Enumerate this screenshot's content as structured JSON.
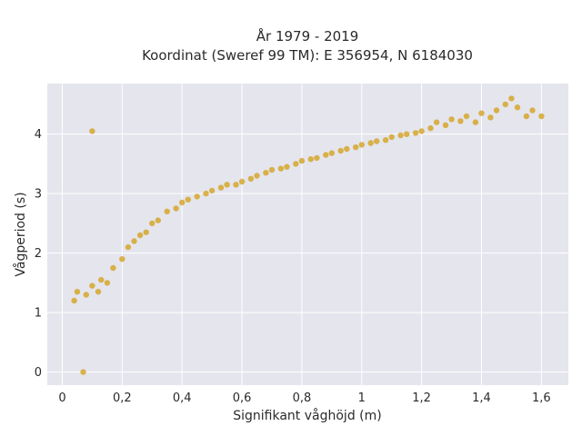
{
  "chart_data": {
    "type": "scatter",
    "title": [
      "År 1979 - 2019",
      "Koordinat (Sweref 99 TM): E 356954, N 6184030"
    ],
    "xlabel": "Signifikant våghöjd (m)",
    "ylabel": "Vågperiod (s)",
    "xlim": [
      -0.05,
      1.69
    ],
    "ylim": [
      -0.22,
      4.85
    ],
    "xticks": [
      0,
      0.2,
      0.4,
      0.6,
      0.8,
      1,
      1.2,
      1.4,
      1.6
    ],
    "xtick_labels": [
      "0",
      "0,2",
      "0,4",
      "0,6",
      "0,8",
      "1",
      "1,2",
      "1,4",
      "1,6"
    ],
    "yticks": [
      0,
      1,
      2,
      3,
      4
    ],
    "ytick_labels": [
      "0",
      "1",
      "2",
      "3",
      "4"
    ],
    "grid": true,
    "background": "#e5e5ee",
    "marker_color": "#d4a21a",
    "series": [
      {
        "points": [
          [
            0.1,
            4.05
          ],
          [
            0.07,
            0.0
          ],
          [
            0.04,
            1.2
          ],
          [
            0.05,
            1.35
          ],
          [
            0.08,
            1.3
          ],
          [
            0.1,
            1.45
          ],
          [
            0.12,
            1.35
          ],
          [
            0.13,
            1.55
          ],
          [
            0.15,
            1.5
          ],
          [
            0.17,
            1.75
          ],
          [
            0.2,
            1.9
          ],
          [
            0.22,
            2.1
          ],
          [
            0.24,
            2.2
          ],
          [
            0.26,
            2.3
          ],
          [
            0.28,
            2.35
          ],
          [
            0.3,
            2.5
          ],
          [
            0.32,
            2.55
          ],
          [
            0.35,
            2.7
          ],
          [
            0.38,
            2.75
          ],
          [
            0.4,
            2.85
          ],
          [
            0.42,
            2.9
          ],
          [
            0.45,
            2.95
          ],
          [
            0.48,
            3.0
          ],
          [
            0.5,
            3.05
          ],
          [
            0.53,
            3.1
          ],
          [
            0.55,
            3.15
          ],
          [
            0.58,
            3.15
          ],
          [
            0.6,
            3.2
          ],
          [
            0.63,
            3.25
          ],
          [
            0.65,
            3.3
          ],
          [
            0.68,
            3.35
          ],
          [
            0.7,
            3.4
          ],
          [
            0.73,
            3.42
          ],
          [
            0.75,
            3.45
          ],
          [
            0.78,
            3.5
          ],
          [
            0.8,
            3.55
          ],
          [
            0.83,
            3.58
          ],
          [
            0.85,
            3.6
          ],
          [
            0.88,
            3.65
          ],
          [
            0.9,
            3.68
          ],
          [
            0.93,
            3.72
          ],
          [
            0.95,
            3.75
          ],
          [
            0.98,
            3.78
          ],
          [
            1.0,
            3.82
          ],
          [
            1.03,
            3.85
          ],
          [
            1.05,
            3.88
          ],
          [
            1.08,
            3.9
          ],
          [
            1.1,
            3.95
          ],
          [
            1.13,
            3.98
          ],
          [
            1.15,
            4.0
          ],
          [
            1.18,
            4.02
          ],
          [
            1.2,
            4.05
          ],
          [
            1.23,
            4.1
          ],
          [
            1.25,
            4.2
          ],
          [
            1.28,
            4.15
          ],
          [
            1.3,
            4.25
          ],
          [
            1.33,
            4.22
          ],
          [
            1.35,
            4.3
          ],
          [
            1.38,
            4.2
          ],
          [
            1.4,
            4.35
          ],
          [
            1.43,
            4.28
          ],
          [
            1.45,
            4.4
          ],
          [
            1.48,
            4.5
          ],
          [
            1.5,
            4.6
          ],
          [
            1.52,
            4.45
          ],
          [
            1.55,
            4.3
          ],
          [
            1.57,
            4.4
          ],
          [
            1.6,
            4.3
          ]
        ]
      }
    ]
  }
}
